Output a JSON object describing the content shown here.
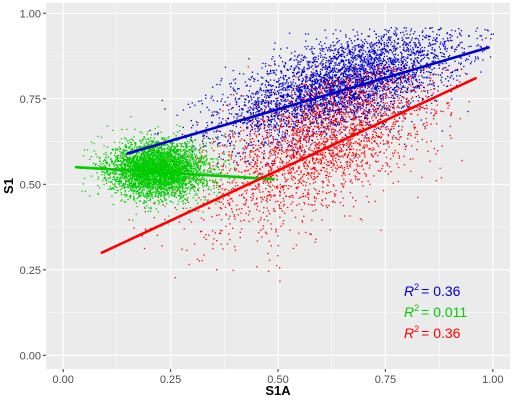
{
  "chart_data": {
    "type": "scatter",
    "xlabel": "S1A",
    "ylabel": "S1",
    "xlim": [
      -0.04,
      1.04
    ],
    "ylim": [
      -0.04,
      1.03
    ],
    "grid": true,
    "x_ticks": [
      0.0,
      0.25,
      0.5,
      0.75,
      1.0
    ],
    "x_tick_labels": [
      "0.00",
      "0.25",
      "0.50",
      "0.75",
      "1.00"
    ],
    "y_ticks": [
      0.0,
      0.25,
      0.5,
      0.75,
      1.0
    ],
    "y_tick_labels": [
      "0.00",
      "0.25",
      "0.50",
      "0.75",
      "1.00"
    ],
    "series": [
      {
        "color": "#0000cc",
        "cloud": {
          "center": [
            0.65,
            0.78
          ],
          "spread": [
            0.14,
            0.065
          ],
          "x_range": [
            0.15,
            1.0
          ],
          "y_range": [
            0.55,
            0.96
          ]
        },
        "fit": {
          "x": [
            0.15,
            0.99
          ],
          "y": [
            0.59,
            0.9
          ]
        },
        "r2_label": "= 0.36"
      },
      {
        "color": "#00cc00",
        "cloud": {
          "center": [
            0.22,
            0.545
          ],
          "spread": [
            0.055,
            0.04
          ],
          "x_range": [
            0.03,
            0.5
          ],
          "y_range": [
            0.3,
            0.72
          ]
        },
        "fit": {
          "x": [
            0.03,
            0.49
          ],
          "y": [
            0.55,
            0.515
          ]
        },
        "r2_label": "= 0.011"
      },
      {
        "color": "#ff0000",
        "cloud": {
          "center": [
            0.6,
            0.6
          ],
          "spread": [
            0.14,
            0.1
          ],
          "x_range": [
            0.1,
            0.96
          ],
          "y_range": [
            0.1,
            0.85
          ]
        },
        "fit": {
          "x": [
            0.09,
            0.96
          ],
          "y": [
            0.3,
            0.81
          ]
        },
        "r2_label": "= 0.36"
      }
    ],
    "annotation_symbol": "R",
    "annotation_superscript": "2"
  }
}
